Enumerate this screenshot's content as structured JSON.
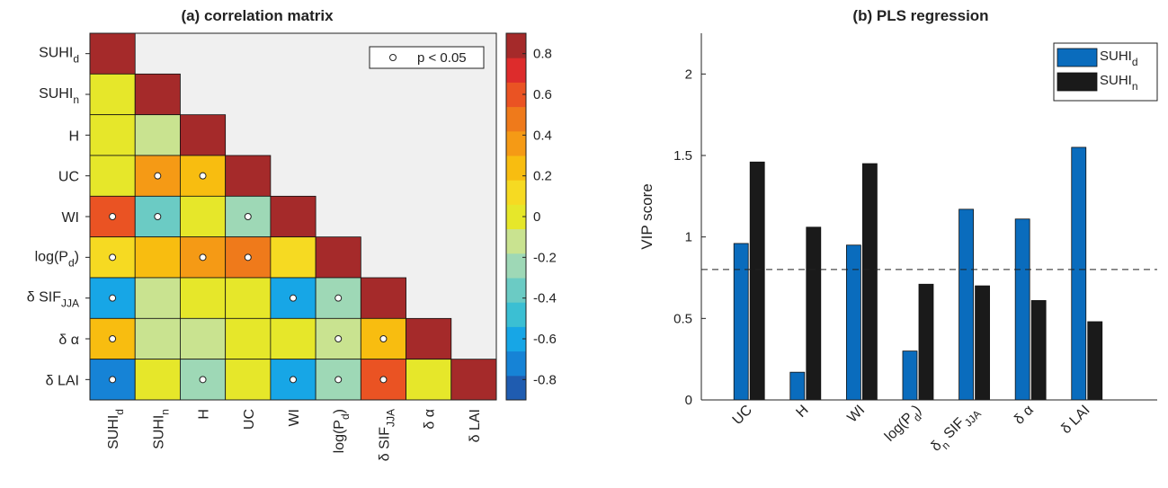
{
  "colors": {
    "panel_bg": "#f0f0f0",
    "diag": "#a52a2a",
    "bar_suhid": "#0a6cbd",
    "bar_suhin": "#1a1a1a"
  },
  "chart_data": [
    {
      "type": "heatmap",
      "title": "(a) correlation matrix",
      "variables": [
        {
          "base": "SUHI",
          "sub": "d"
        },
        {
          "base": "SUHI",
          "sub": "n"
        },
        {
          "base": "H",
          "sub": ""
        },
        {
          "base": "UC",
          "sub": ""
        },
        {
          "base": "WI",
          "sub": ""
        },
        {
          "base": "log(P",
          "sub": "d",
          "tail": ")"
        },
        {
          "base": "δ SIF",
          "sub": "JJA"
        },
        {
          "base": "δ α",
          "sub": ""
        },
        {
          "base": "δ LAI",
          "sub": ""
        }
      ],
      "matrix": [
        [
          1
        ],
        [
          0.05,
          1
        ],
        [
          0.05,
          -0.15,
          1
        ],
        [
          0.05,
          0.35,
          0.25,
          1
        ],
        [
          0.65,
          -0.35,
          0.05,
          -0.3,
          1
        ],
        [
          0.15,
          0.2,
          0.35,
          0.45,
          0.15,
          1
        ],
        [
          -0.55,
          -0.1,
          0.05,
          0.05,
          -0.6,
          -0.3,
          1
        ],
        [
          0.25,
          -0.15,
          -0.15,
          -0.05,
          0.05,
          -0.15,
          0.25,
          1
        ],
        [
          -0.75,
          0.05,
          -0.3,
          0.05,
          -0.6,
          -0.3,
          0.65,
          0.05,
          1
        ]
      ],
      "significant": [
        [
          3,
          1
        ],
        [
          3,
          2
        ],
        [
          4,
          0
        ],
        [
          4,
          1
        ],
        [
          4,
          3
        ],
        [
          5,
          0
        ],
        [
          5,
          2
        ],
        [
          5,
          3
        ],
        [
          6,
          0
        ],
        [
          6,
          4
        ],
        [
          6,
          5
        ],
        [
          7,
          0
        ],
        [
          7,
          5
        ],
        [
          7,
          6
        ],
        [
          8,
          0
        ],
        [
          8,
          2
        ],
        [
          8,
          4
        ],
        [
          8,
          5
        ],
        [
          8,
          6
        ]
      ],
      "legend": "p < 0.05",
      "colorbar": {
        "range": [
          -0.9,
          0.9
        ],
        "ticks": [
          "0.8",
          "0.6",
          "0.4",
          "0.2",
          "0",
          "-0.2",
          "-0.4",
          "-0.6",
          "-0.8"
        ],
        "tick_values": [
          0.8,
          0.6,
          0.4,
          0.2,
          0,
          -0.2,
          -0.4,
          -0.6,
          -0.8
        ],
        "colors": [
          "#1f5cb0",
          "#1683d6",
          "#17a6e6",
          "#3bbfd3",
          "#6bcbc4",
          "#9ed8b6",
          "#c9e390",
          "#e6e72a",
          "#f6da22",
          "#f8bd10",
          "#f59a15",
          "#ef7a1b",
          "#ea5323",
          "#dd2c2c",
          "#a52a2a"
        ]
      }
    },
    {
      "type": "bar",
      "title": "(b) PLS regression",
      "ylabel": "VIP score",
      "ylim": [
        0,
        2.25
      ],
      "yticks": [
        "0",
        "0.5",
        "1",
        "1.5",
        "2"
      ],
      "ytick_values": [
        0,
        0.5,
        1,
        1.5,
        2
      ],
      "threshold": 0.8,
      "categories": [
        {
          "base": "UC",
          "sub": ""
        },
        {
          "base": "H",
          "sub": ""
        },
        {
          "base": "WI",
          "sub": ""
        },
        {
          "base": "log(P",
          "sub": "d",
          "tail": ")"
        },
        {
          "base": "SIF",
          "sub": "JJA",
          "pre": "δ",
          "pre_sub": "n"
        },
        {
          "base": "δ α",
          "sub": ""
        },
        {
          "base": "δ LAI",
          "sub": ""
        }
      ],
      "series": [
        {
          "name": "SUHI",
          "sub": "d",
          "values": [
            0.96,
            0.17,
            0.95,
            0.3,
            1.17,
            1.11,
            1.55
          ]
        },
        {
          "name": "SUHI",
          "sub": "n",
          "values": [
            1.46,
            1.06,
            1.45,
            0.71,
            0.7,
            0.61,
            0.48
          ]
        }
      ]
    }
  ]
}
